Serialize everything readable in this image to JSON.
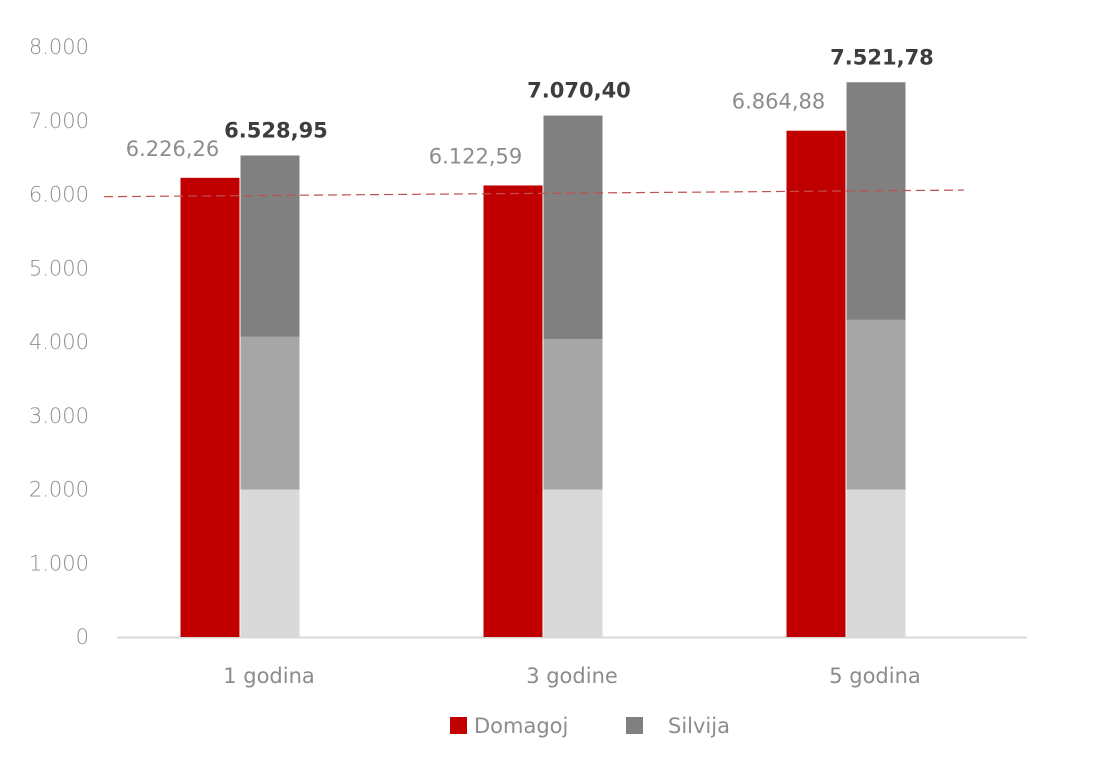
{
  "chart_data": {
    "type": "bar",
    "categories": [
      "1 godina",
      "3 godine",
      "5 godina"
    ],
    "series": [
      {
        "name": "Domagoj",
        "values": [
          6226.26,
          6122.59,
          6864.88
        ],
        "labels": [
          "6.226,26",
          "6.122,59",
          "6.864,88"
        ],
        "color": "#c00000"
      },
      {
        "name": "Silvija",
        "values": [
          6528.95,
          7070.4,
          7521.78
        ],
        "labels": [
          "6.528,95",
          "7.070,40",
          "7.521,78"
        ],
        "color": "#808080",
        "stack_segments": [
          {
            "values": [
              2000,
              2000,
              2000
            ],
            "color": "#d9d9d9"
          },
          {
            "values": [
              2070,
              2040,
              2300
            ],
            "color": "#a6a6a6"
          },
          {
            "values": [
              2458.95,
              3030.4,
              3221.78
            ],
            "color": "#808080"
          }
        ]
      }
    ],
    "y_ticks": [
      "0",
      "1.000",
      "2.000",
      "3.000",
      "4.000",
      "5.000",
      "6.000",
      "7.000",
      "8.000"
    ],
    "ylim": [
      0,
      8000
    ],
    "reference_line": {
      "start": 5970,
      "end": 6060,
      "color": "#c0504d",
      "style": "dashed"
    },
    "legend": {
      "position": "bottom"
    },
    "grid": false,
    "title": "",
    "xlabel": "",
    "ylabel": ""
  }
}
